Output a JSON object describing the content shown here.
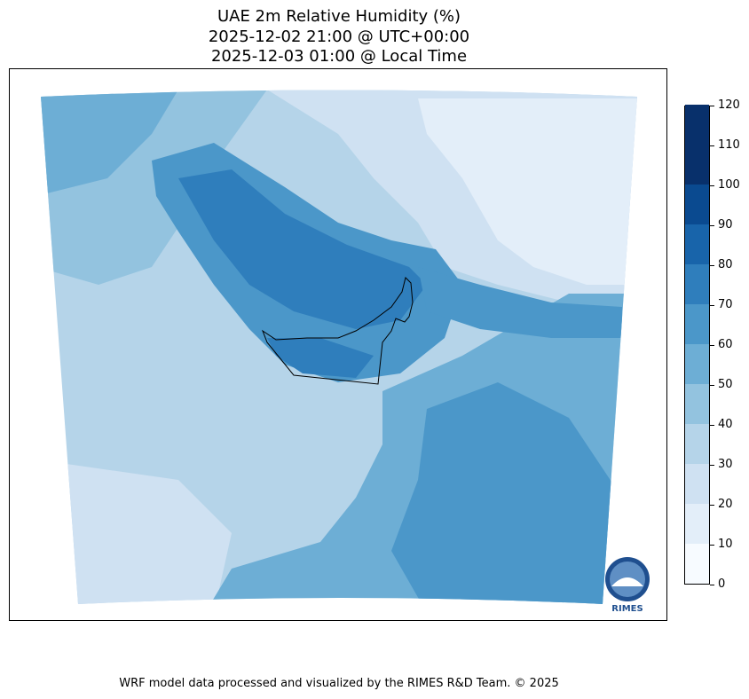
{
  "title": {
    "line1": "UAE 2m Relative Humidity (%)",
    "line2": "2025-12-02 21:00 @ UTC+00:00",
    "line3": "2025-12-03 01:00 @ Local Time"
  },
  "colorbar": {
    "ticks": [
      "0",
      "10",
      "20",
      "30",
      "40",
      "50",
      "60",
      "70",
      "80",
      "90",
      "100",
      "110",
      "120"
    ],
    "colors": [
      "#f7fbff",
      "#e3eef9",
      "#cfe1f2",
      "#b5d4e9",
      "#93c3df",
      "#6daed5",
      "#4b97c9",
      "#2f7ebc",
      "#1864aa",
      "#0a4a90",
      "#08306b",
      "#08306b"
    ]
  },
  "logo": {
    "text": "RIMES"
  },
  "footer": "WRF model data processed and visualized by the RIMES R&D Team. © 2025"
}
